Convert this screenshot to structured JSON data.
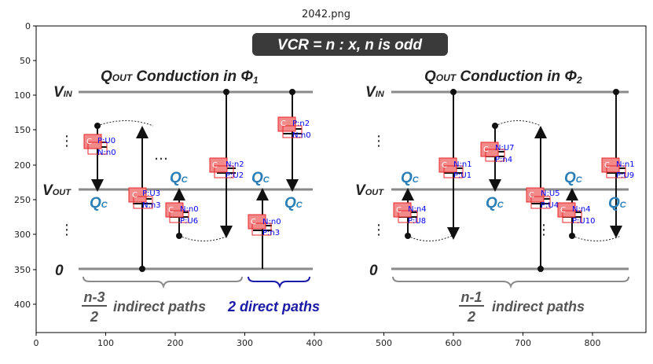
{
  "window_title": "2042.png",
  "x_ticks": [
    "0",
    "100",
    "200",
    "300",
    "400",
    "500",
    "600",
    "700",
    "800"
  ],
  "y_ticks": [
    "0",
    "50",
    "100",
    "150",
    "200",
    "250",
    "300",
    "350",
    "400"
  ],
  "banner": "VCR = n : x, n is odd",
  "left": {
    "title_q": "Q",
    "title_sub": "OUT",
    "title_rest": " Conduction in Φ",
    "title_phase": "1",
    "vin": "V",
    "vin_sub": "IN",
    "vout": "V",
    "vout_sub": "OUT",
    "zero": "0",
    "qc": [
      "Q",
      "Q",
      "Q",
      "Q"
    ],
    "qc_sub": [
      "C",
      "C",
      "C",
      "C"
    ],
    "indirect_num": "n-3",
    "indirect_den": "2",
    "indirect_text": "indirect paths",
    "direct_text": "2 direct paths",
    "cap_labels": [
      {
        "c": "C",
        "p": "P:U0",
        "n": "N:n0"
      },
      {
        "c": "C",
        "p": "P:U3",
        "n": "N:n3"
      },
      {
        "c": "C",
        "p": "N:n0",
        "n": "P:U6"
      },
      {
        "c": "C",
        "p": "N:n2",
        "n": "P:U2"
      },
      {
        "c": "C",
        "p": "P:n2",
        "n": "N:n0"
      },
      {
        "c": "C",
        "p": "N:n0",
        "n": "P:n3"
      }
    ]
  },
  "right": {
    "title_q": "Q",
    "title_sub": "OUT",
    "title_rest": " Conduction in Φ",
    "title_phase": "2",
    "vin": "V",
    "vin_sub": "IN",
    "vout": "V",
    "vout_sub": "OUT",
    "zero": "0",
    "qc": [
      "Q",
      "Q",
      "Q",
      "Q"
    ],
    "qc_sub": [
      "C",
      "C",
      "C",
      "C"
    ],
    "indirect_num": "n-1",
    "indirect_den": "2",
    "indirect_text": "indirect paths",
    "cap_labels": [
      {
        "c": "C",
        "p": "N:n4",
        "n": "P:U8"
      },
      {
        "c": "C",
        "p": "N:n1",
        "n": "P:U1"
      },
      {
        "c": "C",
        "p": "N:U7",
        "n": "P:n4"
      },
      {
        "c": "C",
        "p": "N:U5",
        "n": "P:U4"
      },
      {
        "c": "C",
        "p": "N:n4",
        "n": "P:U10"
      },
      {
        "c": "C",
        "p": "N:n1",
        "n": "P:U9"
      }
    ]
  },
  "colors": {
    "rail": "#8a8a8a",
    "qc_blue": "#2a7fb8",
    "direct_blue": "#1a1aa8",
    "annotation_blue": "#0000ff",
    "annotation_red": "#e8262b",
    "annotation_fill": "#f28a8a",
    "banner_bg": "#3a3a3a"
  }
}
